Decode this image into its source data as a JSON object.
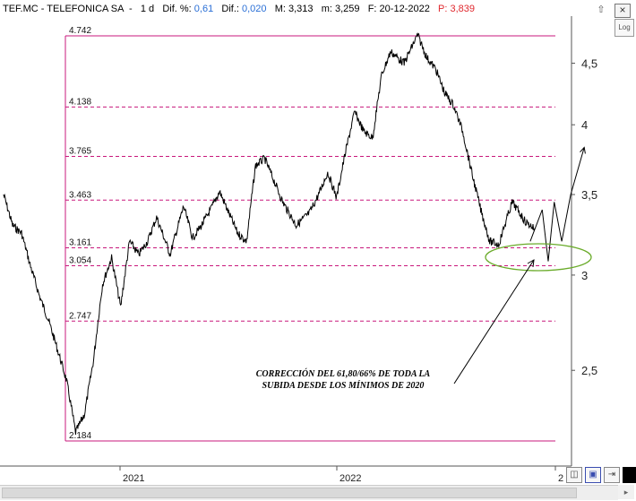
{
  "header": {
    "symbol": "TEF.MC - TELEFONICA SA",
    "period": "1 d",
    "dif_pct_label": "Dif. %:",
    "dif_pct_value": "0,61",
    "dif_label": "Dif.:",
    "dif_value": "0,020",
    "max_label": "M:",
    "max_value": "3,313",
    "min_label": "m:",
    "min_value": "3,259",
    "date_label": "F:",
    "date_value": "20-12-2022",
    "price_label": "P:",
    "price_value": "3,839"
  },
  "controls": {
    "log_label": "Log",
    "close_glyph": "×",
    "scroll_up_glyph": "⇧",
    "corner_glyph": "▸"
  },
  "colors": {
    "price_line": "#000000",
    "fib_lines": "#c8187c",
    "ellipse": "#6aab2a",
    "blue_value": "#2a6fd6",
    "red_value": "#e0282e"
  },
  "chart_data": {
    "type": "line",
    "x_axis": {
      "tick_labels": [
        "2021",
        "2022",
        "2"
      ],
      "start": "2020-07",
      "end": "2023-01"
    },
    "y_axis": {
      "tick_labels": [
        "4,5",
        "4",
        "3,5",
        "3",
        "2,5"
      ],
      "ticks": [
        4.5,
        4,
        3.5,
        3,
        2.5
      ],
      "range": [
        2.04,
        4.82
      ],
      "scale": "log",
      "position": "right"
    },
    "grid": false,
    "fibonacci_levels": [
      {
        "label": "4.742",
        "value": 4.742
      },
      {
        "label": "4.138",
        "value": 4.138
      },
      {
        "label": "3.765",
        "value": 3.765
      },
      {
        "label": "3.463",
        "value": 3.463
      },
      {
        "label": "3.161",
        "value": 3.161
      },
      {
        "label": "3.054",
        "value": 3.054
      },
      {
        "label": "2.747",
        "value": 2.747
      },
      {
        "label": "2.184",
        "value": 2.184
      }
    ],
    "annotations": [
      "CORRECCIÓN DEL 61,80/66% DE TODA LA",
      "SUBIDA DESDE LOS MÍNIMOS DE 2020"
    ],
    "series": [
      {
        "x": [
          "2020-07",
          "2020-07",
          "2020-08",
          "2020-08",
          "2020-09",
          "2020-09",
          "2020-10",
          "2020-10",
          "2020-11",
          "2020-11",
          "2020-12",
          "2020-12",
          "2021-01",
          "2021-01",
          "2021-02",
          "2021-02",
          "2021-03",
          "2021-03",
          "2021-04",
          "2021-05",
          "2021-05",
          "2021-06",
          "2021-06",
          "2021-07",
          "2021-07",
          "2021-08",
          "2021-08",
          "2021-09",
          "2021-09",
          "2021-10",
          "2021-10",
          "2021-11",
          "2021-12",
          "2021-12",
          "2022-01",
          "2022-01",
          "2022-02",
          "2022-02",
          "2022-03",
          "2022-03",
          "2022-04",
          "2022-04",
          "2022-05",
          "2022-06",
          "2022-06",
          "2022-07",
          "2022-07",
          "2022-08",
          "2022-08",
          "2022-09",
          "2022-09",
          "2022-10",
          "2022-10",
          "2022-11",
          "2022-12",
          "2022-12"
        ],
        "values": [
          3.5,
          3.3,
          3.25,
          3.05,
          2.88,
          2.75,
          2.6,
          2.45,
          2.22,
          2.3,
          2.55,
          2.95,
          3.1,
          2.82,
          3.2,
          3.12,
          3.2,
          3.35,
          3.12,
          3.42,
          3.22,
          3.3,
          3.4,
          3.52,
          3.38,
          3.25,
          3.2,
          3.7,
          3.75,
          3.6,
          3.45,
          3.3,
          3.38,
          3.5,
          3.65,
          3.48,
          3.8,
          4.1,
          3.95,
          3.9,
          4.4,
          4.6,
          4.5,
          4.75,
          4.55,
          4.45,
          4.25,
          4.15,
          3.95,
          3.65,
          3.4,
          3.2,
          3.18,
          3.45,
          3.32,
          3.28
        ]
      }
    ],
    "projection": {
      "x": [
        "2022-12",
        "2023-01",
        "2023-01",
        "2023-01",
        "2023-02",
        "2023-02",
        "2023-03"
      ],
      "values": [
        3.2,
        3.4,
        3.08,
        3.45,
        3.2,
        3.5,
        3.83
      ]
    }
  }
}
